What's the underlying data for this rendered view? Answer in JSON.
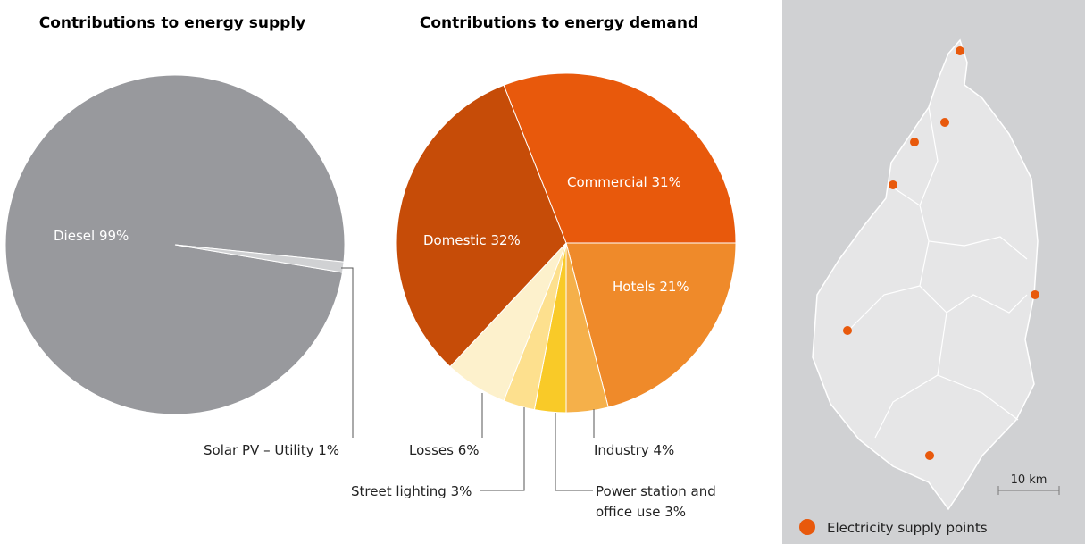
{
  "chart_data": [
    {
      "type": "pie",
      "title": "Contributions to energy supply",
      "categories": [
        "Diesel",
        "Solar PV – Utility"
      ],
      "values": [
        99,
        1
      ],
      "value_labels": [
        "99%",
        "1%"
      ],
      "colors": [
        "#98999d",
        "#d0d1d3"
      ]
    },
    {
      "type": "pie",
      "title": "Contributions to energy demand",
      "categories": [
        "Commercial",
        "Hotels",
        "Industry",
        "Power station and office use",
        "Street lighting",
        "Losses",
        "Domestic"
      ],
      "values": [
        31,
        21,
        4,
        3,
        3,
        6,
        32
      ],
      "value_labels": [
        "31%",
        "21%",
        "4%",
        "3%",
        "3%",
        "6%",
        "32%"
      ],
      "colors": [
        "#e8590c",
        "#ef8a2a",
        "#f5b04a",
        "#f9ca28",
        "#fde08e",
        "#fdf1cc",
        "#c64c08"
      ]
    }
  ],
  "map": {
    "scale_label": "10 km",
    "legend": "Electricity supply points",
    "point_color": "#e8590c"
  }
}
